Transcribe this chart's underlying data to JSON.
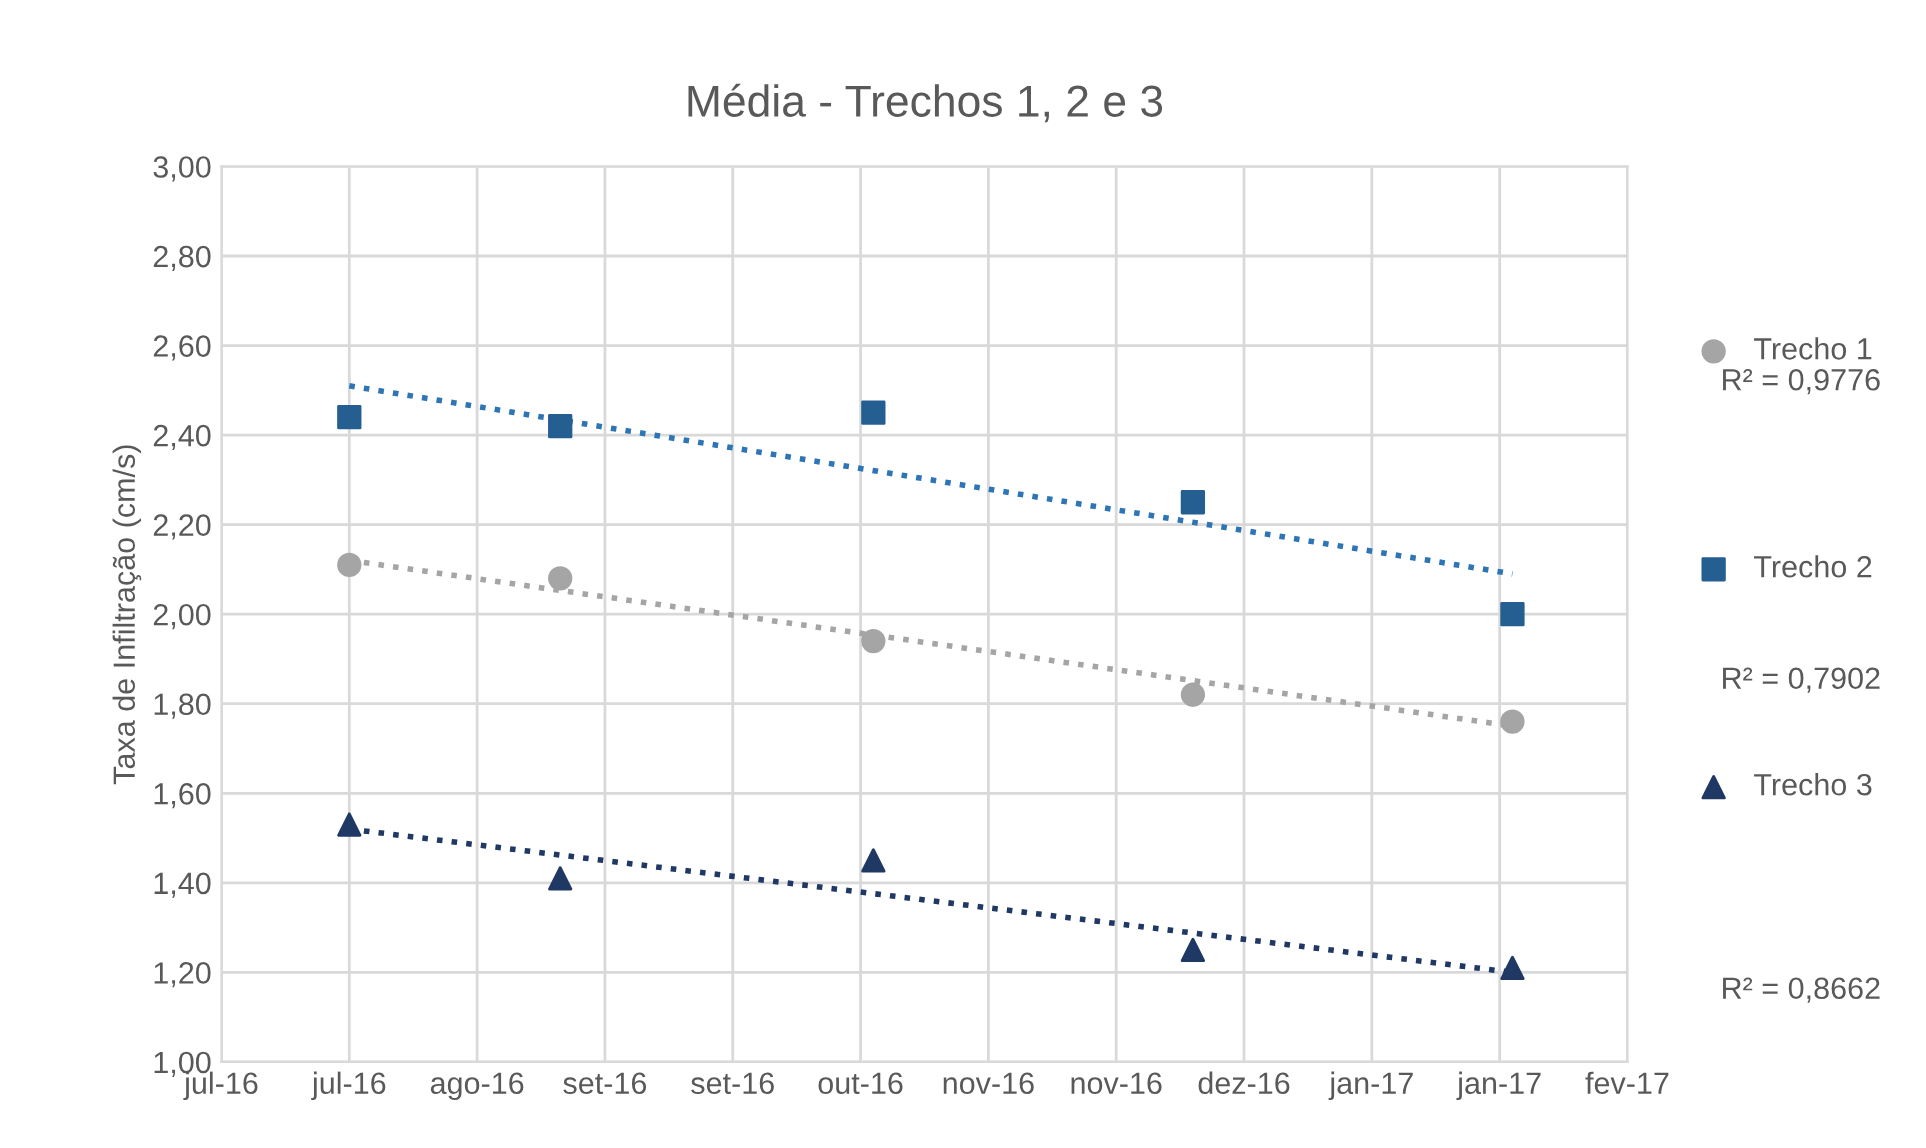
{
  "chart_data": {
    "type": "scatter",
    "title": "Média - Trechos 1, 2 e 3",
    "ylabel": "Taxa de Infiltração (cm/s)",
    "x": [
      "2016-07-26",
      "2016-08-28",
      "2016-10-16",
      "2016-12-05",
      "2017-01-24"
    ],
    "series": [
      {
        "name": "Trecho 1",
        "color": "#a5a5a5",
        "marker": "circle",
        "values": [
          2.11,
          2.08,
          1.94,
          1.82,
          1.76
        ]
      },
      {
        "name": "Trecho 2",
        "color": "#255e91",
        "marker": "square",
        "values": [
          2.44,
          2.42,
          2.45,
          2.25,
          2.0
        ]
      },
      {
        "name": "Trecho 3",
        "color": "#1f3864",
        "marker": "triangle",
        "values": [
          1.53,
          1.41,
          1.45,
          1.25,
          1.21
        ]
      },
      {
        "type": "line",
        "color": "#a5a5a5",
        "line_style": "dotted",
        "marker": "none",
        "x": [
          "2016-07-26",
          "2017-01-24"
        ],
        "values": [
          2.12,
          1.75
        ]
      },
      {
        "type": "line",
        "color": "#2e75b6",
        "line_style": "dotted",
        "marker": "none",
        "x": [
          "2016-07-26",
          "2017-01-24"
        ],
        "values": [
          2.51,
          2.09
        ]
      },
      {
        "type": "line",
        "color": "#1f3864",
        "line_style": "dotted",
        "marker": "none",
        "x": [
          "2016-07-26",
          "2017-01-24"
        ],
        "values": [
          1.52,
          1.2
        ]
      }
    ],
    "xlim": [
      "2016-07-06",
      "2017-02-11"
    ],
    "xticks": [
      {
        "value": "2016-07-06",
        "label": "jul-16"
      },
      {
        "value": "2016-07-26",
        "label": "jul-16"
      },
      {
        "value": "2016-08-15",
        "label": "ago-16"
      },
      {
        "value": "2016-09-04",
        "label": "set-16"
      },
      {
        "value": "2016-09-24",
        "label": "set-16"
      },
      {
        "value": "2016-10-14",
        "label": "out-16"
      },
      {
        "value": "2016-11-03",
        "label": "nov-16"
      },
      {
        "value": "2016-11-23",
        "label": "nov-16"
      },
      {
        "value": "2016-12-13",
        "label": "dez-16"
      },
      {
        "value": "2017-01-02",
        "label": "jan-17"
      },
      {
        "value": "2017-01-22",
        "label": "jan-17"
      },
      {
        "value": "2017-02-11",
        "label": "fev-17"
      }
    ],
    "ylim": [
      1.0,
      3.0
    ],
    "yticks": [
      {
        "value": 1.0,
        "label": "1,00"
      },
      {
        "value": 1.2,
        "label": "1,20"
      },
      {
        "value": 1.4,
        "label": "1,40"
      },
      {
        "value": 1.6,
        "label": "1,60"
      },
      {
        "value": 1.8,
        "label": "1,80"
      },
      {
        "value": 2.0,
        "label": "2,00"
      },
      {
        "value": 2.2,
        "label": "2,20"
      },
      {
        "value": 2.4,
        "label": "2,40"
      },
      {
        "value": 2.6,
        "label": "2,60"
      },
      {
        "value": 2.8,
        "label": "2,80"
      },
      {
        "value": 3.0,
        "label": "3,00"
      }
    ],
    "grid": true,
    "legend": "right",
    "annotations": [
      "R² = 0,9776",
      "R² = 0,7902",
      "R² = 0,8662"
    ]
  }
}
